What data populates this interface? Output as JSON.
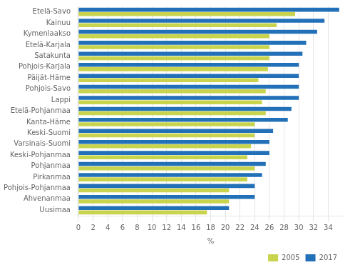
{
  "chart_data": {
    "type": "bar",
    "orientation": "horizontal",
    "categories": [
      "Etelä-Savo",
      "Kainuu",
      "Kymenlaakso",
      "Etelä-Karjala",
      "Satakunta",
      "Pohjois-Karjala",
      "Päijät-Häme",
      "Pohjois-Savo",
      "Lappi",
      "Etelä-Pohjanmaa",
      "Kanta-Häme",
      "Keski-Suomi",
      "Varsinais-Suomi",
      "Keski-Pohjanmaa",
      "Pohjanmaa",
      "Pirkanmaa",
      "Pohjois-Pohjanmaa",
      "Ahvenanmaa",
      "Uusimaa"
    ],
    "series": [
      {
        "name": "2017",
        "color": "#2270b8",
        "values": [
          35.5,
          33.5,
          32.5,
          31.0,
          30.5,
          30.0,
          30.0,
          30.0,
          30.0,
          29.0,
          28.5,
          26.5,
          26.0,
          26.0,
          25.5,
          25.0,
          24.0,
          24.0,
          20.5
        ]
      },
      {
        "name": "2005",
        "color": "#c8d44e",
        "values": [
          29.5,
          27.0,
          26.0,
          26.0,
          26.0,
          25.8,
          24.5,
          25.5,
          25.0,
          25.5,
          24.0,
          24.0,
          23.5,
          23.0,
          24.0,
          23.0,
          20.5,
          20.5,
          17.5
        ]
      }
    ],
    "xlabel": "%",
    "xlim": [
      0,
      36
    ],
    "xticks": [
      0,
      2,
      4,
      6,
      8,
      10,
      12,
      14,
      16,
      18,
      20,
      22,
      24,
      26,
      28,
      30,
      32,
      34
    ],
    "grid": true,
    "legend": "lower right"
  }
}
